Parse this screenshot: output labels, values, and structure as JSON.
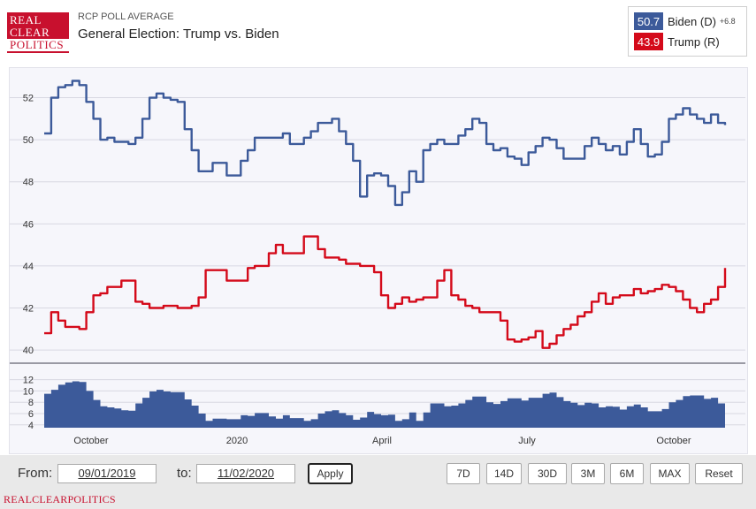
{
  "header": {
    "logo_lines": [
      "REAL",
      "CLEAR",
      "POLITICS"
    ],
    "subtitle": "RCP POLL AVERAGE",
    "title": "General Election: Trump vs. Biden"
  },
  "legend": {
    "biden": {
      "value": "50.7",
      "label": "Biden (D)",
      "spread": "+6.8",
      "color": "#3c5a9a"
    },
    "trump": {
      "value": "43.9",
      "label": "Trump (R)",
      "color": "#d40a1a"
    }
  },
  "controls": {
    "from_label": "From:",
    "from_value": "09/01/2019",
    "to_label": "to:",
    "to_value": "11/02/2020",
    "apply_label": "Apply",
    "range_buttons": [
      "7D",
      "14D",
      "30D",
      "3M",
      "6M",
      "MAX",
      "Reset"
    ]
  },
  "footer": "REALCLEARPOLITICS",
  "chart_data": {
    "type": "line",
    "x_tick_labels": [
      "October",
      "2020",
      "April",
      "July",
      "October"
    ],
    "main_yaxis": {
      "ticks": [
        40,
        42,
        44,
        46,
        48,
        50,
        52
      ],
      "ylim": [
        39.5,
        53.2
      ]
    },
    "spread_yaxis": {
      "ticks": [
        4,
        6,
        8,
        10,
        12
      ],
      "ylim": [
        3.5,
        13.5
      ]
    },
    "grid": true,
    "series": [
      {
        "name": "Biden (D)",
        "color": "#3c5a9a",
        "values": [
          50.3,
          52.0,
          52.5,
          52.6,
          52.8,
          52.6,
          51.8,
          51.0,
          50.0,
          50.1,
          49.9,
          49.9,
          49.8,
          50.1,
          51.0,
          52.0,
          52.2,
          52.0,
          51.9,
          51.8,
          50.5,
          49.5,
          48.5,
          48.5,
          48.9,
          48.9,
          48.3,
          48.3,
          49.0,
          49.5,
          50.1,
          50.1,
          50.1,
          50.1,
          50.3,
          49.8,
          49.8,
          50.1,
          50.4,
          50.8,
          50.8,
          51.0,
          50.4,
          49.8,
          49.0,
          47.3,
          48.3,
          48.4,
          48.3,
          47.8,
          46.9,
          47.5,
          48.5,
          48.0,
          49.5,
          49.8,
          50.0,
          49.8,
          49.8,
          50.2,
          50.5,
          51.0,
          50.8,
          49.8,
          49.5,
          49.6,
          49.2,
          49.1,
          48.8,
          49.4,
          49.7,
          50.1,
          50.0,
          49.6,
          49.1,
          49.1,
          49.1,
          49.7,
          50.1,
          49.8,
          49.5,
          49.7,
          49.3,
          49.9,
          50.5,
          49.8,
          49.2,
          49.3,
          49.9,
          51.0,
          51.2,
          51.5,
          51.2,
          51.0,
          50.8,
          51.2,
          50.8,
          50.7
        ],
        "start": "2019-09-01",
        "end": "2020-11-02"
      },
      {
        "name": "Trump (R)",
        "color": "#d40a1a",
        "values": [
          40.8,
          41.8,
          41.4,
          41.1,
          41.1,
          41.0,
          41.8,
          42.6,
          42.7,
          43.0,
          43.0,
          43.3,
          43.3,
          42.3,
          42.2,
          42.0,
          42.0,
          42.1,
          42.1,
          42.0,
          42.0,
          42.1,
          42.5,
          43.8,
          43.8,
          43.8,
          43.3,
          43.3,
          43.3,
          43.9,
          44.0,
          44.0,
          44.6,
          45.0,
          44.6,
          44.6,
          44.6,
          45.4,
          45.4,
          44.8,
          44.4,
          44.4,
          44.3,
          44.1,
          44.1,
          44.0,
          44.0,
          43.7,
          42.6,
          42.0,
          42.2,
          42.5,
          42.3,
          42.4,
          42.5,
          42.5,
          43.3,
          43.8,
          42.6,
          42.4,
          42.1,
          42.0,
          41.8,
          41.8,
          41.8,
          41.4,
          40.5,
          40.4,
          40.5,
          40.6,
          40.9,
          40.1,
          40.3,
          40.7,
          41.0,
          41.2,
          41.6,
          41.8,
          42.3,
          42.7,
          42.2,
          42.5,
          42.6,
          42.6,
          42.9,
          42.7,
          42.8,
          42.9,
          43.1,
          43.0,
          42.8,
          42.4,
          42.0,
          41.8,
          42.2,
          42.4,
          43.0,
          43.9
        ],
        "start": "2019-09-01",
        "end": "2020-11-02"
      },
      {
        "name": "Spread",
        "color": "#3c5a9a",
        "values": [
          9.5,
          10.2,
          11.1,
          11.5,
          11.7,
          11.6,
          10.0,
          8.4,
          7.3,
          7.1,
          6.9,
          6.6,
          6.5,
          7.8,
          8.8,
          9.9,
          10.2,
          9.9,
          9.8,
          9.8,
          8.5,
          7.4,
          6.0,
          4.7,
          5.1,
          5.1,
          5.0,
          5.0,
          5.7,
          5.6,
          6.1,
          6.1,
          5.5,
          5.1,
          5.7,
          5.2,
          5.2,
          4.7,
          5.0,
          6.0,
          6.4,
          6.6,
          6.1,
          5.7,
          4.9,
          5.3,
          6.3,
          5.9,
          5.7,
          5.8,
          4.7,
          5.0,
          6.2,
          4.7,
          6.2,
          7.8,
          7.8,
          7.3,
          7.4,
          7.8,
          8.4,
          9.0,
          9.0,
          8.0,
          7.7,
          8.2,
          8.7,
          8.7,
          8.3,
          8.8,
          8.8,
          9.5,
          9.7,
          8.9,
          8.2,
          7.9,
          7.5,
          7.9,
          7.8,
          7.1,
          7.3,
          7.2,
          6.7,
          7.3,
          7.6,
          7.1,
          6.4,
          6.4,
          6.8,
          8.0,
          8.4,
          9.1,
          9.2,
          9.2,
          8.6,
          8.8,
          7.8,
          6.8
        ]
      }
    ]
  }
}
